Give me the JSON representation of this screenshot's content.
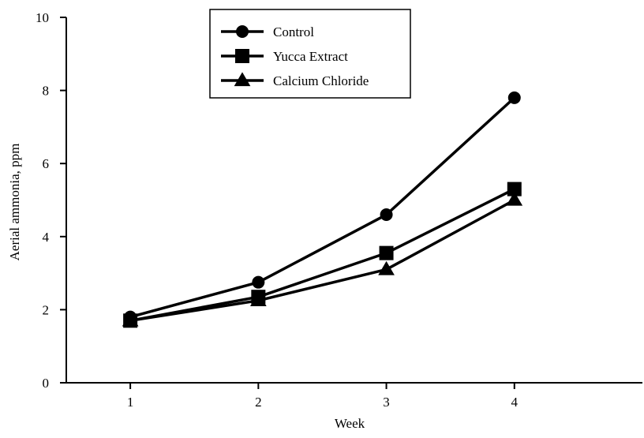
{
  "chart_data": {
    "type": "line",
    "title": "",
    "xlabel": "Week",
    "ylabel": "Aerial ammonia, ppm",
    "x": [
      1,
      2,
      3,
      4
    ],
    "xlim": [
      0.5,
      5
    ],
    "ylim": [
      0,
      10
    ],
    "xticks": [
      "1",
      "2",
      "3",
      "4"
    ],
    "yticks": [
      "0",
      "2",
      "4",
      "6",
      "8",
      "10"
    ],
    "grid": false,
    "legend_position": "top-center",
    "series": [
      {
        "name": "Control",
        "marker": "circle",
        "color": "#000000",
        "values": [
          1.8,
          2.75,
          4.6,
          7.8
        ]
      },
      {
        "name": "Yucca Extract",
        "marker": "square",
        "color": "#000000",
        "values": [
          1.7,
          2.35,
          3.55,
          5.3
        ]
      },
      {
        "name": "Calcium Chloride",
        "marker": "triangle",
        "color": "#000000",
        "values": [
          1.7,
          2.25,
          3.1,
          5.0
        ]
      }
    ]
  }
}
